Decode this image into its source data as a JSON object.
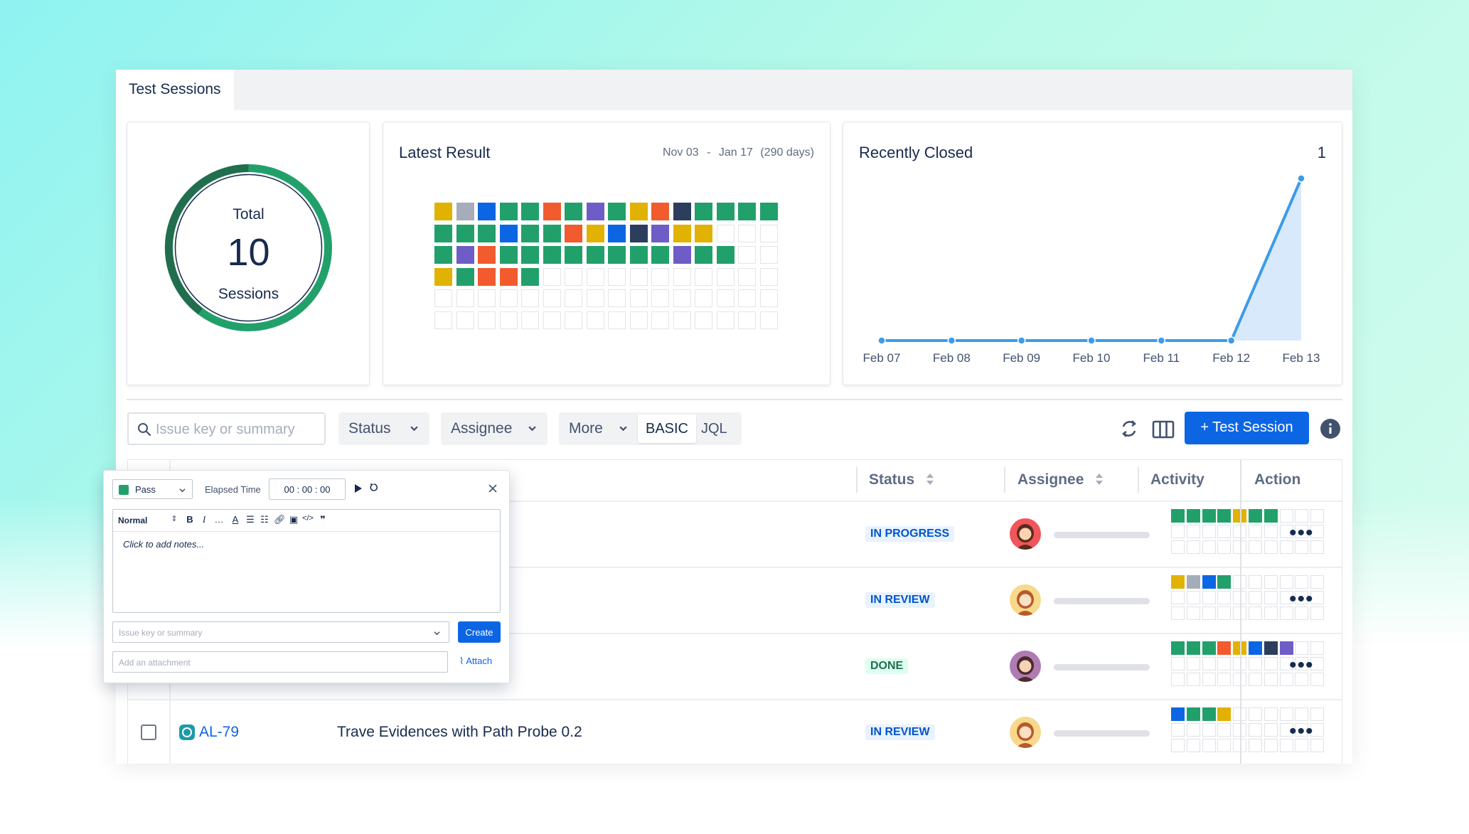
{
  "tabs": [
    {
      "label": "Test Sessions"
    }
  ],
  "total_panel": {
    "label_top": "Total",
    "value": "10",
    "label_bottom": "Sessions"
  },
  "latest_panel": {
    "title": "Latest Result",
    "date_start": "Nov 03",
    "date_sep": "-",
    "date_end": "Jan 17",
    "date_days": "(290 days)",
    "palette": {
      "G": "#22a06b",
      "Y": "#e2b203",
      "B": "#0c66e4",
      "R": "#f15b2e",
      "P": "#6e5dc6",
      "D": "#2c3e5d",
      "S": "#a5adba",
      "E": ""
    },
    "grid_rows": [
      "YSBGGRGPGYRDGGGG",
      "GGGBGGRYBDPYY",
      "GPRGGGGGGGGPGG",
      "YGRRG"
    ],
    "grid_total_rows": 6,
    "grid_cols": 16
  },
  "recently_closed": {
    "title": "Recently Closed",
    "count": "1",
    "chart_data": {
      "type": "area",
      "x": [
        "Feb 07",
        "Feb 08",
        "Feb 09",
        "Feb 10",
        "Feb 11",
        "Feb 12",
        "Feb 13"
      ],
      "series": [
        {
          "values": [
            0,
            0,
            0,
            0,
            0,
            0,
            1
          ]
        }
      ],
      "ylim": [
        0,
        1
      ],
      "color": "#3d9be9",
      "fill": "#d8e9fb"
    }
  },
  "filters": {
    "search_placeholder": "Issue key or summary",
    "status_label": "Status",
    "assignee_label": "Assignee",
    "more_label": "More",
    "basic_label": "BASIC",
    "jql_label": "JQL",
    "new_button": "+ Test Session"
  },
  "table": {
    "headers": {
      "status": "Status",
      "assignee": "Assignee",
      "activity": "Activity",
      "action": "Action"
    },
    "rows": [
      {
        "status": "IN PROGRESS",
        "status_style": "blue",
        "avatar": "red",
        "activity": "GGGGYGG"
      },
      {
        "status": "IN REVIEW",
        "status_style": "blue",
        "avatar": "girl",
        "activity": "YSBG"
      },
      {
        "status": "DONE",
        "status_style": "green",
        "avatar": "purple",
        "activity": "GGGRYBDP"
      },
      {
        "key": "AL-79",
        "summary": "Trave Evidences with Path Probe 0.2",
        "status": "IN REVIEW",
        "status_style": "blue",
        "avatar": "girl",
        "activity": "BGGY"
      }
    ],
    "action_glyph": "•••"
  },
  "popup": {
    "result": "Pass",
    "elapsed_label": "Elapsed Time",
    "elapsed_value": "00 : 00 : 00",
    "format_label": "Normal",
    "notes_placeholder": "Click to add notes...",
    "issue_placeholder": "Issue key or summary",
    "create_label": "Create",
    "attachment_placeholder": "Add an attachment",
    "attach_label": "Attach"
  }
}
